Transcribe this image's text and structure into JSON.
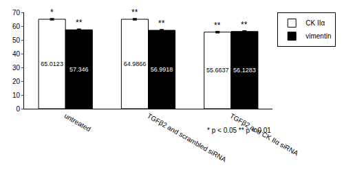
{
  "chart_data": {
    "type": "bar",
    "categories": [
      "untreated",
      "TGFβ2 and scrambled siRNA",
      "TGFβ2 and CK IIα siRNA"
    ],
    "series": [
      {
        "name": "CK IIα",
        "color": "#ffffff",
        "values": [
          65.0123,
          64.9866,
          55.6637
        ],
        "error": [
          0.5,
          0.5,
          0.5
        ],
        "significance": [
          "*",
          "**",
          "**"
        ]
      },
      {
        "name": "vimentin",
        "color": "#000000",
        "values": [
          57.346,
          56.9918,
          56.1283
        ],
        "error": [
          0.5,
          0.5,
          0.5
        ],
        "significance": [
          "**",
          "**",
          "**"
        ]
      }
    ],
    "ylim": [
      0,
      70
    ],
    "yticks": [
      0,
      10,
      20,
      30,
      40,
      50,
      60,
      70
    ],
    "grid": false,
    "legend": "right",
    "data_labels": true,
    "note": "* p < 0.05 ** p < 0.01"
  }
}
